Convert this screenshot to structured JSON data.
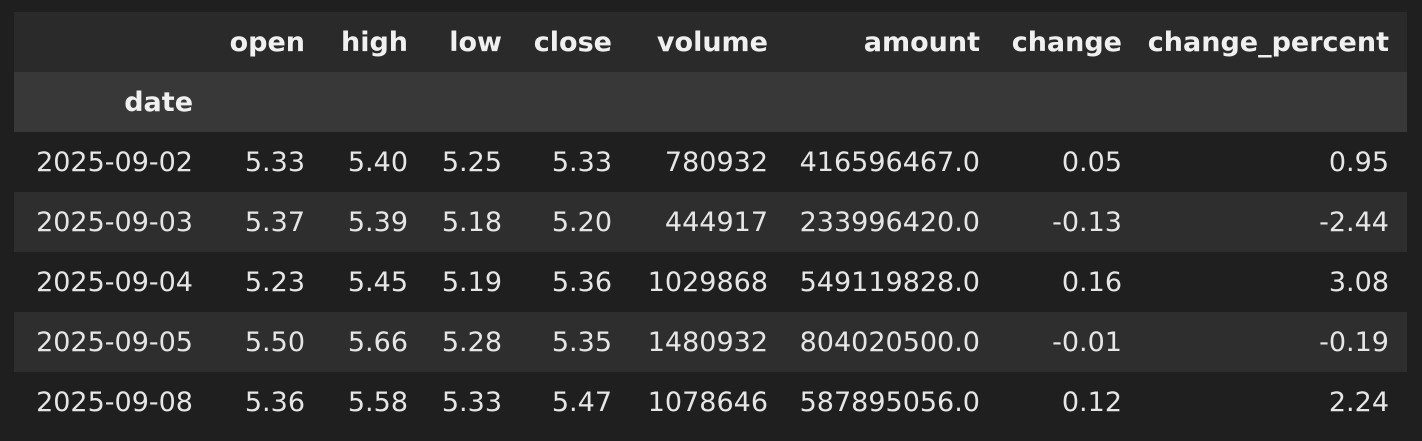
{
  "table": {
    "columns": [
      "open",
      "high",
      "low",
      "close",
      "volume",
      "amount",
      "change",
      "change_percent"
    ],
    "index_name": "date",
    "rows": [
      {
        "date": "2025-09-02",
        "open": "5.33",
        "high": "5.40",
        "low": "5.25",
        "close": "5.33",
        "volume": "780932",
        "amount": "416596467.0",
        "change": "0.05",
        "change_percent": "0.95"
      },
      {
        "date": "2025-09-03",
        "open": "5.37",
        "high": "5.39",
        "low": "5.18",
        "close": "5.20",
        "volume": "444917",
        "amount": "233996420.0",
        "change": "-0.13",
        "change_percent": "-2.44"
      },
      {
        "date": "2025-09-04",
        "open": "5.23",
        "high": "5.45",
        "low": "5.19",
        "close": "5.36",
        "volume": "1029868",
        "amount": "549119828.0",
        "change": "0.16",
        "change_percent": "3.08"
      },
      {
        "date": "2025-09-05",
        "open": "5.50",
        "high": "5.66",
        "low": "5.28",
        "close": "5.35",
        "volume": "1480932",
        "amount": "804020500.0",
        "change": "-0.01",
        "change_percent": "-0.19"
      },
      {
        "date": "2025-09-08",
        "open": "5.36",
        "high": "5.58",
        "low": "5.33",
        "close": "5.47",
        "volume": "1078646",
        "amount": "587895056.0",
        "change": "0.12",
        "change_percent": "2.24"
      }
    ]
  },
  "colors": {
    "background": "#1f1f1f",
    "header_background": "#2a2a2a",
    "index_header_background": "#383838",
    "alt_row_background": "#2e2e2e",
    "text": "#e6e6e6"
  }
}
